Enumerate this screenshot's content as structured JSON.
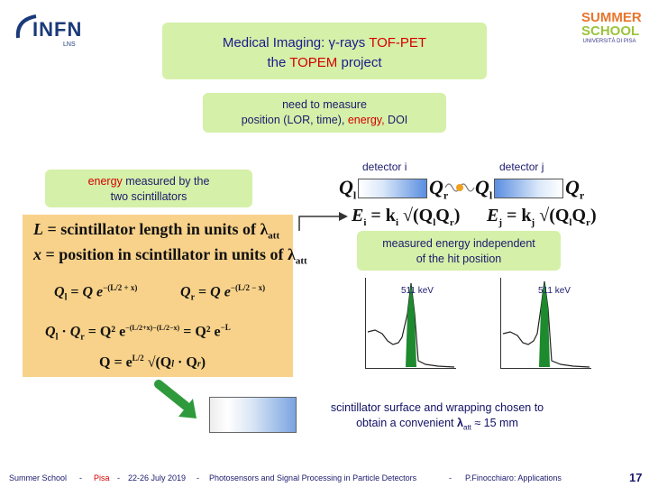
{
  "logos": {
    "left": "INFN",
    "left_sub": "LNS",
    "right_line1": "SUMMER",
    "right_line2": "SCHOOL",
    "right_sub": "UNIVERSITÀ DI PISA"
  },
  "title": {
    "line1_prefix": "Medical Imaging: ",
    "line1_gamma": "γ",
    "line1_mid": "-rays ",
    "line1_red": "TOF-PET",
    "line2_prefix": "the ",
    "line2_red": "TOPEM",
    "line2_suffix": " project"
  },
  "need_box": {
    "line1": "need to measure",
    "line2_prefix": "position (LOR, time), ",
    "line2_red": "energy,",
    "line2_suffix": " DOI"
  },
  "energy_box": {
    "word_red": "energy",
    "line1_suffix": " measured by the",
    "line2": "two scintillators"
  },
  "formulas": {
    "L_def_var": "L",
    "L_def_text": " = scintillator length in units of λ",
    "L_def_sub": "att",
    "x_def_var": "x",
    "x_def_text": " = position in scintillator in units of λ",
    "x_def_sub": "att",
    "ql": "Q",
    "ql_sub": "l",
    "qr": "Q",
    "qr_sub": "r",
    "q_eq": "Q",
    "e": "e",
    "exp1": "−(L/2 + x)",
    "exp2": "−(L/2 − x)",
    "product_rhs": "Q² e",
    "product_exp": "−L",
    "product_mid": "Q² e",
    "product_mid_exp": "−(L/2+x)−(L/2−x)",
    "q_final_lhs": "Q = e",
    "q_final_exp": "L/2",
    "q_final_rhs": "√(Q",
    "q_final_close": ")"
  },
  "detectors": {
    "label_i": "detector i",
    "label_j": "detector j",
    "q_left_i": "Q",
    "q_left_i_sub": "l",
    "q_right_i": "Q",
    "q_right_i_sub": "r",
    "q_left_j": "Q",
    "q_left_j_sub": "l",
    "q_right_j": "Q",
    "q_right_j_sub": "r",
    "ei_formula": "E",
    "ei_sub": "i",
    "ei_rhs": " = k",
    "ei_k_sub": "i",
    "ej_formula": "E",
    "ej_sub": "j",
    "ej_rhs": " = k",
    "ej_k_sub": "j"
  },
  "independent_box": {
    "line1": "measured energy independent",
    "line2": "of the hit position"
  },
  "spectra": {
    "left_label": "511 keV",
    "right_label": "511 keV"
  },
  "surface_text": {
    "line1": "scintillator surface and wrapping chosen to",
    "line2_prefix": "obtain a convenient ",
    "lambda": "λ",
    "lambda_sub": "att",
    "line2_suffix": " ≈ 15 mm"
  },
  "footer": {
    "school": "Summer School",
    "sep1": "-",
    "place": "Pisa",
    "sep2": "-",
    "dates": "22-26 July 2019",
    "sep3": "-",
    "course": "Photosensors and Signal Processing in Particle Detectors",
    "sep4": "-",
    "author": "P.Finocchiaro: Applications",
    "page": "17"
  },
  "colors": {
    "green_box": "#d5f0a8",
    "formula_panel": "#f8d28a",
    "accent_red": "#d40000",
    "text_navy": "#1a1a8c"
  }
}
